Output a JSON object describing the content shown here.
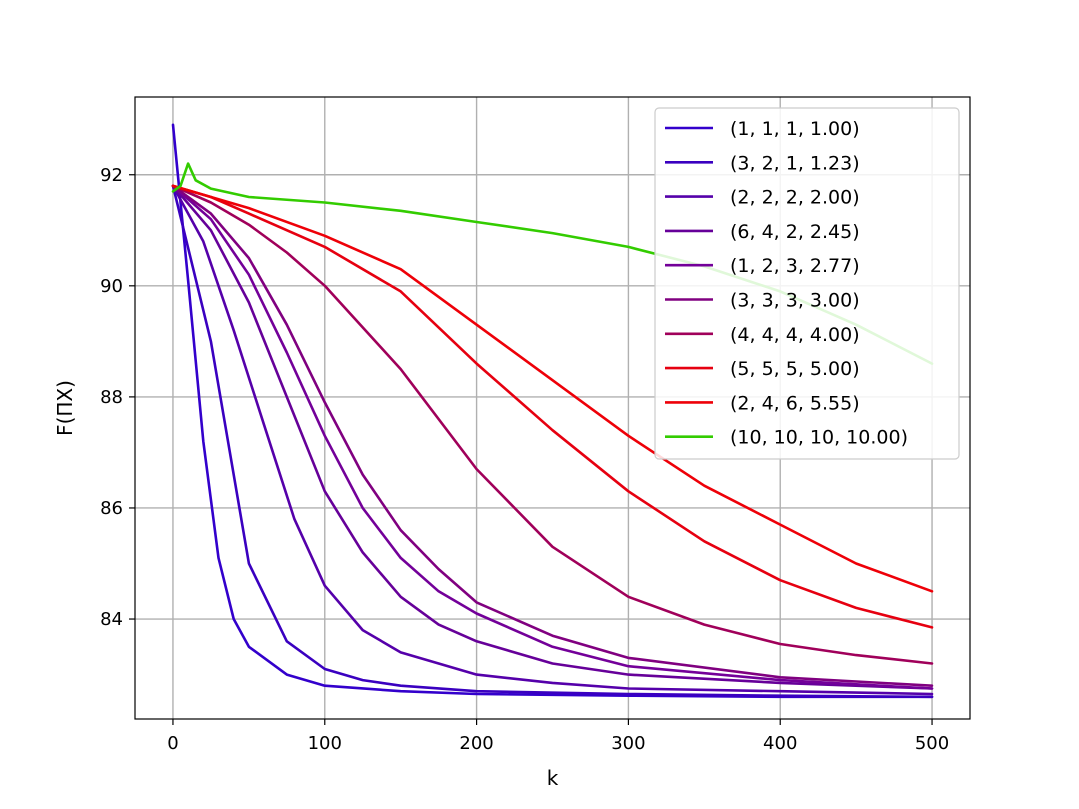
{
  "chart_data": {
    "type": "line",
    "xlabel": "k",
    "ylabel": "F(ΠX)",
    "xlim": [
      -25,
      525
    ],
    "ylim": [
      82.2,
      93.4
    ],
    "xticks": [
      0,
      100,
      200,
      300,
      400,
      500
    ],
    "yticks": [
      84,
      86,
      88,
      90,
      92
    ],
    "grid": true,
    "legend_position": "top-right",
    "series": [
      {
        "name": "(1, 1, 1, 1.00)",
        "color": "#3300cc",
        "x": [
          0,
          10,
          20,
          30,
          40,
          50,
          75,
          100,
          150,
          200,
          300,
          400,
          500
        ],
        "y": [
          92.9,
          90.1,
          87.2,
          85.1,
          84.0,
          83.5,
          83.0,
          82.8,
          82.7,
          82.65,
          82.62,
          82.6,
          82.6
        ]
      },
      {
        "name": "(3, 2, 1, 1.23)",
        "color": "#3a00c0",
        "x": [
          0,
          25,
          50,
          75,
          100,
          125,
          150,
          200,
          300,
          400,
          500
        ],
        "y": [
          91.8,
          89.0,
          85.0,
          83.6,
          83.1,
          82.9,
          82.8,
          82.7,
          82.65,
          82.62,
          82.6
        ]
      },
      {
        "name": "(2, 2, 2, 2.00)",
        "color": "#5500aa",
        "x": [
          0,
          20,
          40,
          60,
          80,
          100,
          125,
          150,
          200,
          250,
          300,
          400,
          500
        ],
        "y": [
          91.8,
          90.8,
          89.2,
          87.5,
          85.8,
          84.6,
          83.8,
          83.4,
          83.0,
          82.85,
          82.75,
          82.7,
          82.65
        ]
      },
      {
        "name": "(6, 4, 2, 2.45)",
        "color": "#660099",
        "x": [
          0,
          25,
          50,
          75,
          100,
          125,
          150,
          175,
          200,
          250,
          300,
          400,
          500
        ],
        "y": [
          91.8,
          91.0,
          89.7,
          88.0,
          86.3,
          85.2,
          84.4,
          83.9,
          83.6,
          83.2,
          83.0,
          82.85,
          82.75
        ]
      },
      {
        "name": "(1, 2, 3, 2.77)",
        "color": "#730099",
        "x": [
          0,
          25,
          50,
          75,
          100,
          125,
          150,
          175,
          200,
          250,
          300,
          400,
          500
        ],
        "y": [
          91.8,
          91.2,
          90.2,
          88.8,
          87.3,
          86.0,
          85.1,
          84.5,
          84.1,
          83.5,
          83.15,
          82.9,
          82.75
        ]
      },
      {
        "name": "(3, 3, 3, 3.00)",
        "color": "#800080",
        "x": [
          0,
          25,
          50,
          75,
          100,
          125,
          150,
          175,
          200,
          250,
          300,
          400,
          500
        ],
        "y": [
          91.8,
          91.3,
          90.5,
          89.3,
          87.9,
          86.6,
          85.6,
          84.9,
          84.3,
          83.7,
          83.3,
          82.95,
          82.8
        ]
      },
      {
        "name": "(4, 4, 4, 4.00)",
        "color": "#a0005a",
        "x": [
          0,
          25,
          50,
          75,
          100,
          150,
          200,
          250,
          300,
          350,
          400,
          450,
          500
        ],
        "y": [
          91.8,
          91.5,
          91.1,
          90.6,
          90.0,
          88.5,
          86.7,
          85.3,
          84.4,
          83.9,
          83.55,
          83.35,
          83.2
        ]
      },
      {
        "name": "(5, 5, 5, 5.00)",
        "color": "#e60010",
        "x": [
          0,
          25,
          50,
          100,
          150,
          200,
          250,
          300,
          350,
          400,
          450,
          500
        ],
        "y": [
          91.8,
          91.6,
          91.3,
          90.7,
          89.9,
          88.6,
          87.4,
          86.3,
          85.4,
          84.7,
          84.2,
          83.85
        ]
      },
      {
        "name": "(2, 4, 6, 5.55)",
        "color": "#ee0008",
        "x": [
          0,
          25,
          50,
          100,
          150,
          200,
          250,
          300,
          350,
          400,
          450,
          500
        ],
        "y": [
          91.8,
          91.6,
          91.4,
          90.9,
          90.3,
          89.3,
          88.3,
          87.3,
          86.4,
          85.7,
          85.0,
          84.5
        ]
      },
      {
        "name": "(10, 10, 10, 10.00)",
        "color": "#33cc00",
        "x": [
          0,
          5,
          10,
          15,
          25,
          50,
          100,
          150,
          200,
          250,
          300,
          350,
          400,
          450,
          500
        ],
        "y": [
          91.7,
          91.8,
          92.2,
          91.9,
          91.75,
          91.6,
          91.5,
          91.35,
          91.15,
          90.95,
          90.7,
          90.35,
          89.9,
          89.3,
          88.6
        ]
      }
    ]
  }
}
